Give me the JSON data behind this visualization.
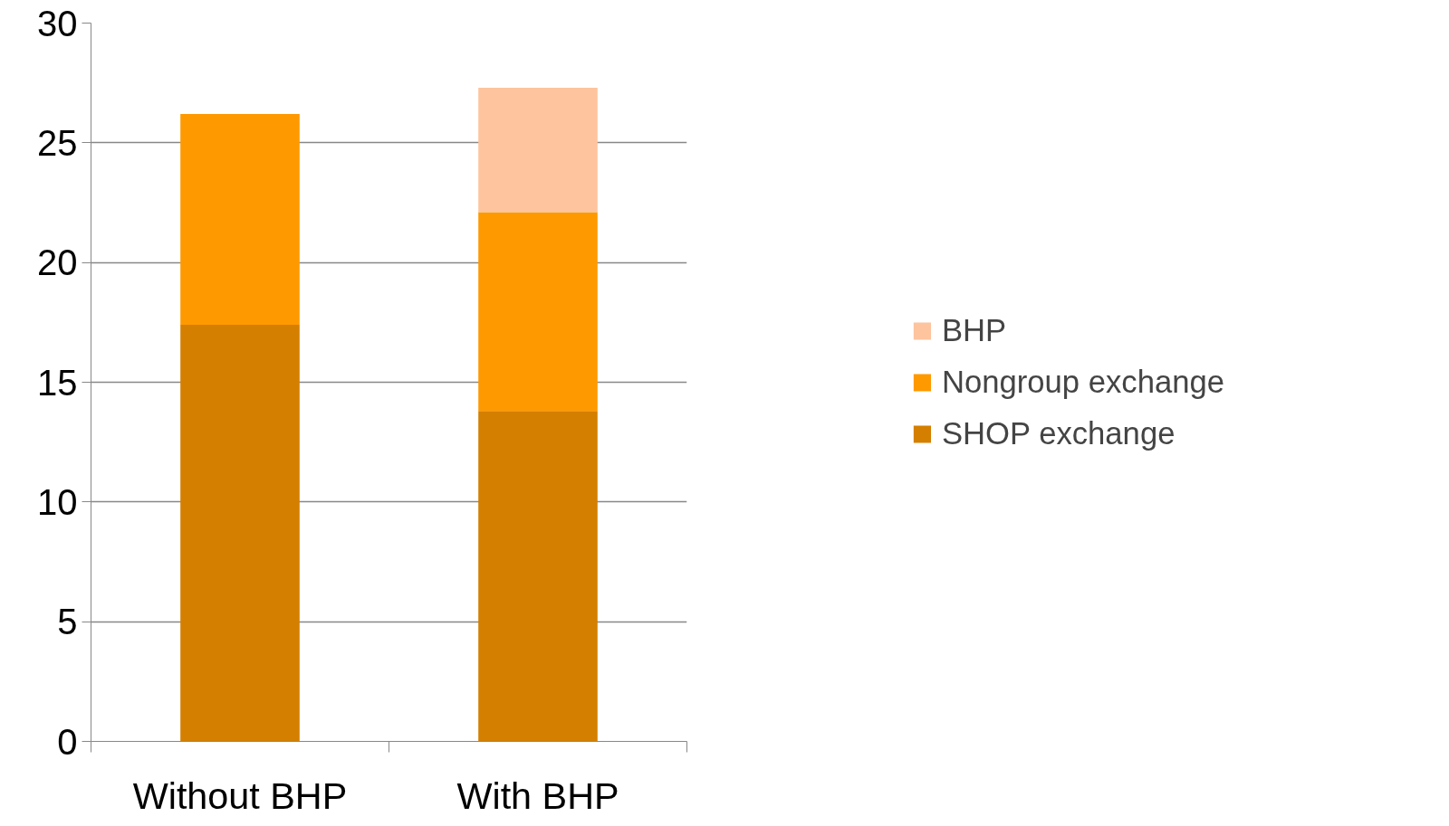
{
  "chart_data": {
    "type": "bar",
    "stacked": true,
    "categories": [
      "Without BHP",
      "With BHP"
    ],
    "series": [
      {
        "name": "SHOP exchange",
        "color": "#d47f00",
        "values": [
          17.4,
          13.8
        ]
      },
      {
        "name": "Nongroup exchange",
        "color": "#ff9900",
        "values": [
          8.8,
          8.3
        ]
      },
      {
        "name": "BHP",
        "color": "#fdc49e",
        "values": [
          null,
          5.2
        ]
      }
    ],
    "ylim": [
      0,
      30
    ],
    "yticks": [
      0,
      5,
      10,
      15,
      20,
      25,
      30
    ],
    "grid": "y",
    "legend": "right"
  }
}
